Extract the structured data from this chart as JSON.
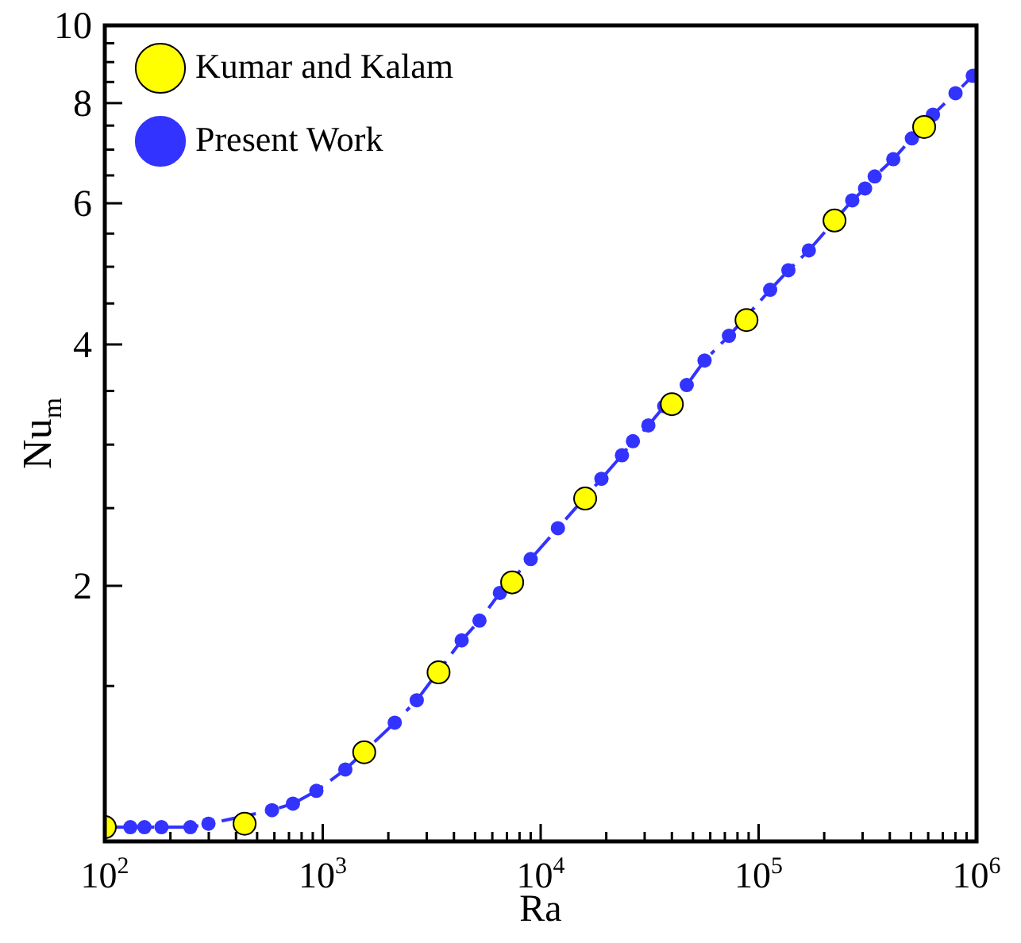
{
  "chart_data": {
    "type": "scatter",
    "xlabel": "Ra",
    "ylabel": "Nu$_{m}$",
    "log": "xy",
    "grid": false,
    "legend": "top left",
    "xlim": [
      100,
      1000000
    ],
    "xticks": [
      {
        "value": 100,
        "label": "10$^{2}$"
      },
      {
        "value": 200,
        "label": null
      },
      {
        "value": 300,
        "label": null
      },
      {
        "value": 400,
        "label": null
      },
      {
        "value": 500,
        "label": null
      },
      {
        "value": 600,
        "label": null
      },
      {
        "value": 700,
        "label": null
      },
      {
        "value": 800,
        "label": null
      },
      {
        "value": 900,
        "label": null
      },
      {
        "value": 1000,
        "label": "10$^{3}$"
      },
      {
        "value": 2000,
        "label": null
      },
      {
        "value": 3000,
        "label": null
      },
      {
        "value": 4000,
        "label": null
      },
      {
        "value": 5000,
        "label": null
      },
      {
        "value": 6000,
        "label": null
      },
      {
        "value": 7000,
        "label": null
      },
      {
        "value": 8000,
        "label": null
      },
      {
        "value": 9000,
        "label": null
      },
      {
        "value": 10000,
        "label": "10$^{4}$"
      },
      {
        "value": 20000,
        "label": null
      },
      {
        "value": 30000,
        "label": null
      },
      {
        "value": 40000,
        "label": null
      },
      {
        "value": 50000,
        "label": null
      },
      {
        "value": 60000,
        "label": null
      },
      {
        "value": 70000,
        "label": null
      },
      {
        "value": 80000,
        "label": null
      },
      {
        "value": 90000,
        "label": null
      },
      {
        "value": 100000,
        "label": "10$^{5}$"
      },
      {
        "value": 200000,
        "label": null
      },
      {
        "value": 300000,
        "label": null
      },
      {
        "value": 400000,
        "label": null
      },
      {
        "value": 500000,
        "label": null
      },
      {
        "value": 600000,
        "label": null
      },
      {
        "value": 700000,
        "label": null
      },
      {
        "value": 800000,
        "label": null
      },
      {
        "value": 900000,
        "label": null
      },
      {
        "value": 1000000,
        "label": "10$^{6}$"
      }
    ],
    "ylim": [
      0.96,
      10
    ],
    "yticks": [
      {
        "value": 1.5,
        "label": null
      },
      2,
      {
        "value": 2.5,
        "label": null
      },
      {
        "value": 3,
        "label": null
      },
      {
        "value": 3.5,
        "label": null
      },
      4,
      {
        "value": 4.5,
        "label": null
      },
      {
        "value": 5,
        "label": null
      },
      {
        "value": 5.5,
        "label": null
      },
      6,
      {
        "value": 6.5,
        "label": null
      },
      {
        "value": 7,
        "label": null
      },
      {
        "value": 7.5,
        "label": null
      },
      8,
      {
        "value": 8.5,
        "label": null
      },
      {
        "value": 9,
        "label": null
      },
      {
        "value": 9.5,
        "label": null
      },
      10
    ],
    "series": [
      {
        "name": "Kumar and Kalam",
        "type": "scatter",
        "color": "#ffff00",
        "marker": "circle",
        "x": [
          100,
          438,
          1550,
          3400,
          7400,
          16000,
          40000,
          88000,
          223000,
          575000
        ],
        "values": [
          1.0,
          1.01,
          1.24,
          1.56,
          2.02,
          2.57,
          3.37,
          4.29,
          5.71,
          7.47
        ]
      },
      {
        "name": "Present Work",
        "type": "line",
        "color": "#3333ff",
        "marker": "circle",
        "line_style": "dashdot",
        "x": [
          100,
          131,
          152,
          182,
          247,
          299,
          585,
          730,
          935,
          1270,
          2140,
          2700,
          4340,
          5240,
          6500,
          9000,
          12000,
          19000,
          23600,
          26500,
          31200,
          36900,
          46800,
          56500,
          73100,
          113000,
          137000,
          170000,
          269000,
          308000,
          341000,
          415000,
          505000,
          631000,
          801000,
          961000
        ],
        "values": [
          1.0,
          1.0,
          1.0,
          1.0,
          1.0,
          1.01,
          1.05,
          1.07,
          1.11,
          1.18,
          1.35,
          1.44,
          1.71,
          1.81,
          1.96,
          2.16,
          2.36,
          2.72,
          2.91,
          3.03,
          3.17,
          3.35,
          3.56,
          3.82,
          4.1,
          4.68,
          4.95,
          5.24,
          6.05,
          6.26,
          6.48,
          6.81,
          7.23,
          7.74,
          8.23,
          8.65
        ]
      }
    ]
  }
}
